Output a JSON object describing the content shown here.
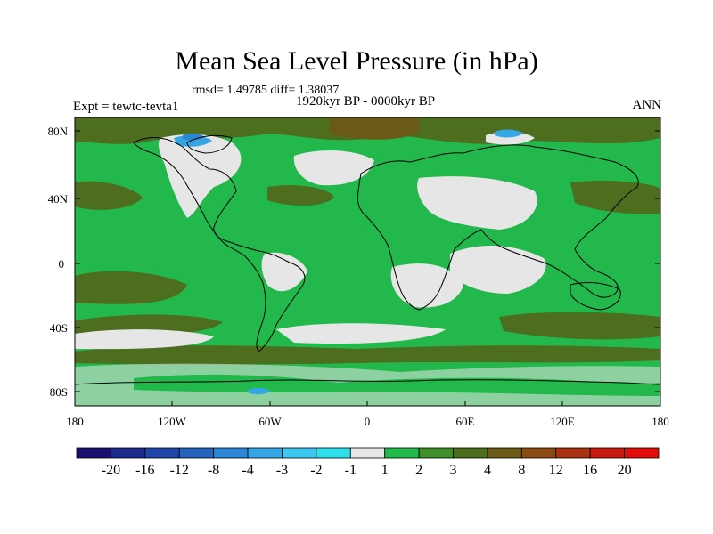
{
  "title": "Mean Sea Level Pressure (in hPa)",
  "stats": "rmsd= 1.49785 diff= 1.38037",
  "period": "1920kyr BP - 0000kyr BP",
  "experiment": "Expt = tewtc-tevta1",
  "season": "ANN",
  "lat_labels": [
    "80N",
    "40N",
    "0",
    "40S",
    "80S"
  ],
  "lon_labels": [
    "180",
    "120W",
    "60W",
    "0",
    "60E",
    "120E",
    "180"
  ],
  "colorbar": {
    "labels": [
      "-20",
      "-16",
      "-12",
      "-8",
      "-4",
      "-3",
      "-2",
      "-1",
      "1",
      "2",
      "3",
      "4",
      "8",
      "12",
      "16",
      "20"
    ],
    "colors": [
      "#1a0f6e",
      "#1d2a8c",
      "#1f45a6",
      "#2563bd",
      "#2d86d4",
      "#35a6e3",
      "#3ec6ee",
      "#2fe0ea",
      "#e6e6e6",
      "#22b84c",
      "#3f8f2a",
      "#4d6d1f",
      "#6a5a16",
      "#8a4a14",
      "#a83212",
      "#c51a10",
      "#e00f0b"
    ]
  },
  "colors": {
    "land_green": "#22b84c",
    "neutral_grey": "#e6e6e6",
    "olive": "#4d6d1f",
    "brown": "#6a5a16",
    "blue": "#35a6e3",
    "coast": "#000000"
  }
}
